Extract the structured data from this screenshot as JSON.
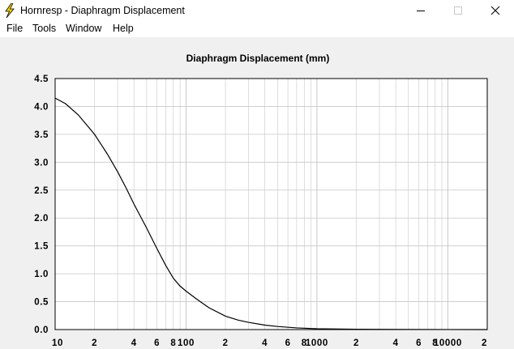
{
  "window": {
    "title": "Hornresp - Diaphragm Displacement"
  },
  "menu": [
    "File",
    "Tools",
    "Window",
    "Help"
  ],
  "colors": {
    "window_bg": "#ffffff",
    "client_bg": "#f0f0f0",
    "plot_bg": "#ffffff",
    "grid": "#c8c8c8",
    "curve": "#000000",
    "icon_yellow": "#f2d000"
  },
  "icons": {
    "app": "lightning-bolt-icon",
    "minimize": "minimize-icon",
    "maximize": "maximize-icon",
    "close": "close-icon"
  },
  "chart_data": {
    "type": "line",
    "title": "Diaphragm Displacement (mm)",
    "x_scale": "log",
    "xlim": [
      10,
      20000
    ],
    "ylim": [
      0,
      4.5
    ],
    "y_ticks": [
      0.0,
      0.5,
      1.0,
      1.5,
      2.0,
      2.5,
      3.0,
      3.5,
      4.0,
      4.5
    ],
    "y_tick_labels": [
      "0.0",
      "0.5",
      "1.0",
      "1.5",
      "2.0",
      "2.5",
      "3.0",
      "3.5",
      "4.0",
      "4.5"
    ],
    "x_ticks": [
      10,
      20,
      40,
      60,
      80,
      100,
      200,
      400,
      600,
      800,
      1000,
      2000,
      4000,
      6000,
      8000,
      10000,
      20000
    ],
    "x_tick_labels": [
      "10",
      "2",
      "4",
      "6",
      "8",
      "100",
      "2",
      "4",
      "6",
      "8",
      "1000",
      "2",
      "4",
      "6",
      "8",
      "10000",
      "2"
    ],
    "grid": true,
    "series": [
      {
        "x": [
          10,
          12,
          15,
          20,
          25,
          30,
          35,
          40,
          50,
          60,
          70,
          80,
          90,
          100,
          120,
          150,
          200,
          250,
          300,
          400,
          500,
          700,
          1000,
          2000,
          5000,
          10000,
          20000
        ],
        "y": [
          4.15,
          4.05,
          3.85,
          3.5,
          3.15,
          2.83,
          2.53,
          2.25,
          1.82,
          1.45,
          1.15,
          0.92,
          0.78,
          0.69,
          0.55,
          0.39,
          0.24,
          0.17,
          0.13,
          0.08,
          0.055,
          0.03,
          0.015,
          0.006,
          0.002,
          0.001,
          0.0
        ]
      }
    ]
  }
}
